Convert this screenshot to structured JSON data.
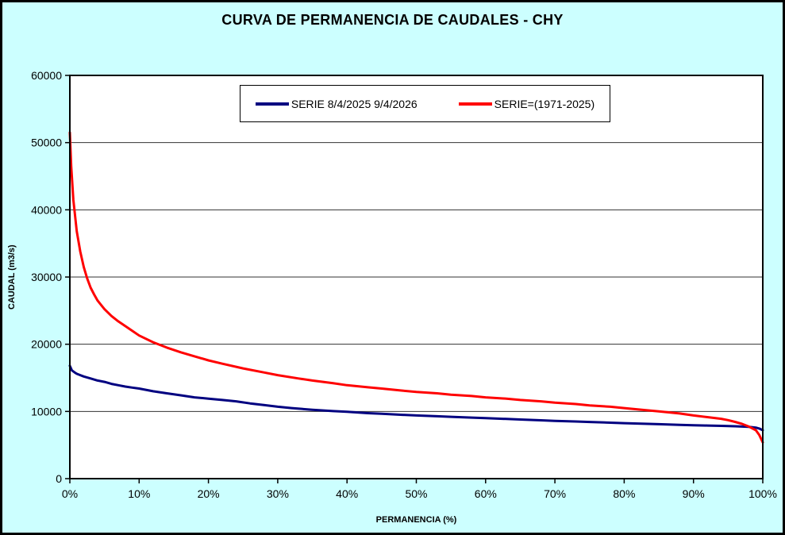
{
  "page": {
    "background_color": "#CCFFFF",
    "plot_background_color": "#FFFFFF"
  },
  "chart_data": {
    "type": "line",
    "title": "CURVA DE PERMANENCIA DE CAUDALES - CHY",
    "xlabel": "PERMANENCIA (%)",
    "ylabel": "CAUDAL (m3/s)",
    "xlim": [
      0,
      100
    ],
    "ylim": [
      0,
      60000
    ],
    "x_tick_values": [
      0,
      10,
      20,
      30,
      40,
      50,
      60,
      70,
      80,
      90,
      100
    ],
    "x_tick_labels": [
      "0%",
      "10%",
      "20%",
      "30%",
      "40%",
      "50%",
      "60%",
      "70%",
      "80%",
      "90%",
      "100%"
    ],
    "y_tick_values": [
      0,
      10000,
      20000,
      30000,
      40000,
      50000,
      60000
    ],
    "y_tick_labels": [
      "0",
      "10000",
      "20000",
      "30000",
      "40000",
      "50000",
      "60000"
    ],
    "grid": "horizontal",
    "grid_color": "#333333",
    "axis_color": "#000000",
    "legend_position": "top-center",
    "series": [
      {
        "name": "SERIE 8/4/2025 9/4/2026",
        "color": "#000080",
        "width": 3,
        "x": [
          0,
          0.3,
          0.7,
          1,
          1.5,
          2,
          3,
          4,
          5,
          6,
          7,
          8,
          9,
          10,
          12,
          14,
          16,
          18,
          20,
          22,
          24,
          26,
          28,
          30,
          32,
          35,
          38,
          40,
          43,
          45,
          48,
          50,
          53,
          55,
          58,
          60,
          63,
          65,
          68,
          70,
          73,
          75,
          78,
          80,
          83,
          85,
          88,
          90,
          92,
          94,
          96,
          97,
          98,
          99,
          99.5,
          100
        ],
        "y": [
          16800,
          16100,
          15800,
          15600,
          15400,
          15200,
          14900,
          14600,
          14400,
          14100,
          13900,
          13700,
          13550,
          13400,
          13000,
          12700,
          12400,
          12100,
          11900,
          11700,
          11500,
          11200,
          10950,
          10700,
          10500,
          10250,
          10050,
          9950,
          9750,
          9650,
          9500,
          9400,
          9280,
          9200,
          9080,
          9000,
          8880,
          8800,
          8680,
          8600,
          8500,
          8430,
          8330,
          8260,
          8160,
          8100,
          8000,
          7950,
          7900,
          7850,
          7790,
          7750,
          7700,
          7600,
          7450,
          7200
        ]
      },
      {
        "name": "SERIE=(1971-2025)",
        "color": "#FF0000",
        "width": 3,
        "x": [
          0,
          0.2,
          0.5,
          1,
          1.5,
          2,
          2.5,
          3,
          3.5,
          4,
          5,
          6,
          7,
          8,
          9,
          10,
          12,
          14,
          16,
          18,
          20,
          22,
          25,
          28,
          30,
          33,
          35,
          38,
          40,
          43,
          45,
          48,
          50,
          53,
          55,
          58,
          60,
          63,
          65,
          68,
          70,
          73,
          75,
          78,
          80,
          83,
          85,
          88,
          90,
          92,
          94,
          95,
          96,
          97,
          98,
          99,
          99.5,
          100
        ],
        "y": [
          51500,
          46500,
          41500,
          36800,
          33800,
          31500,
          29800,
          28400,
          27400,
          26500,
          25200,
          24200,
          23400,
          22700,
          22000,
          21300,
          20300,
          19500,
          18800,
          18200,
          17600,
          17100,
          16400,
          15800,
          15400,
          14900,
          14600,
          14200,
          13900,
          13600,
          13400,
          13100,
          12900,
          12700,
          12500,
          12300,
          12100,
          11900,
          11700,
          11500,
          11300,
          11100,
          10900,
          10700,
          10500,
          10200,
          10000,
          9700,
          9400,
          9150,
          8900,
          8700,
          8450,
          8150,
          7750,
          7200,
          6500,
          5400
        ]
      }
    ]
  }
}
